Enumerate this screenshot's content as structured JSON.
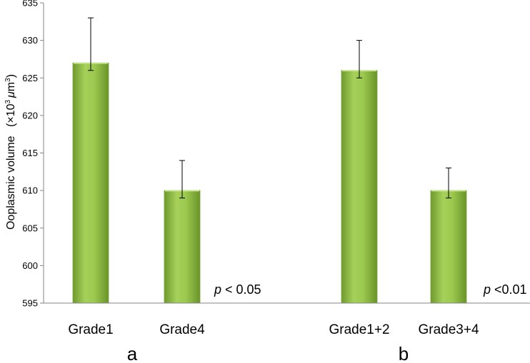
{
  "chart_data": {
    "type": "bar",
    "ylabel_main": "Ooplasmic volume",
    "ylabel_unit_prefix": "(×10",
    "ylabel_unit_exp": "3",
    "ylabel_unit_mu": "μ",
    "ylabel_unit_m": "m",
    "ylabel_unit_exp2": "3",
    "ylabel_unit_suffix": ")",
    "ylim": [
      595,
      635
    ],
    "yticks": [
      "595",
      "600",
      "605",
      "610",
      "615",
      "620",
      "625",
      "630",
      "635"
    ],
    "categories": [
      "Grade1",
      "Grade4",
      "Grade1+2",
      "Grade3+4"
    ],
    "values": [
      627,
      610,
      626,
      610
    ],
    "error_low": [
      626,
      609,
      625,
      609
    ],
    "error_high": [
      633,
      614,
      630,
      613
    ],
    "groups": [
      {
        "label": "a",
        "annotation_p": "p",
        "annotation_rest": " < 0.05"
      },
      {
        "label": "b",
        "annotation_p": "p",
        "annotation_rest": " <0.01"
      }
    ],
    "grid": false,
    "bar_color": "#92c04a"
  }
}
